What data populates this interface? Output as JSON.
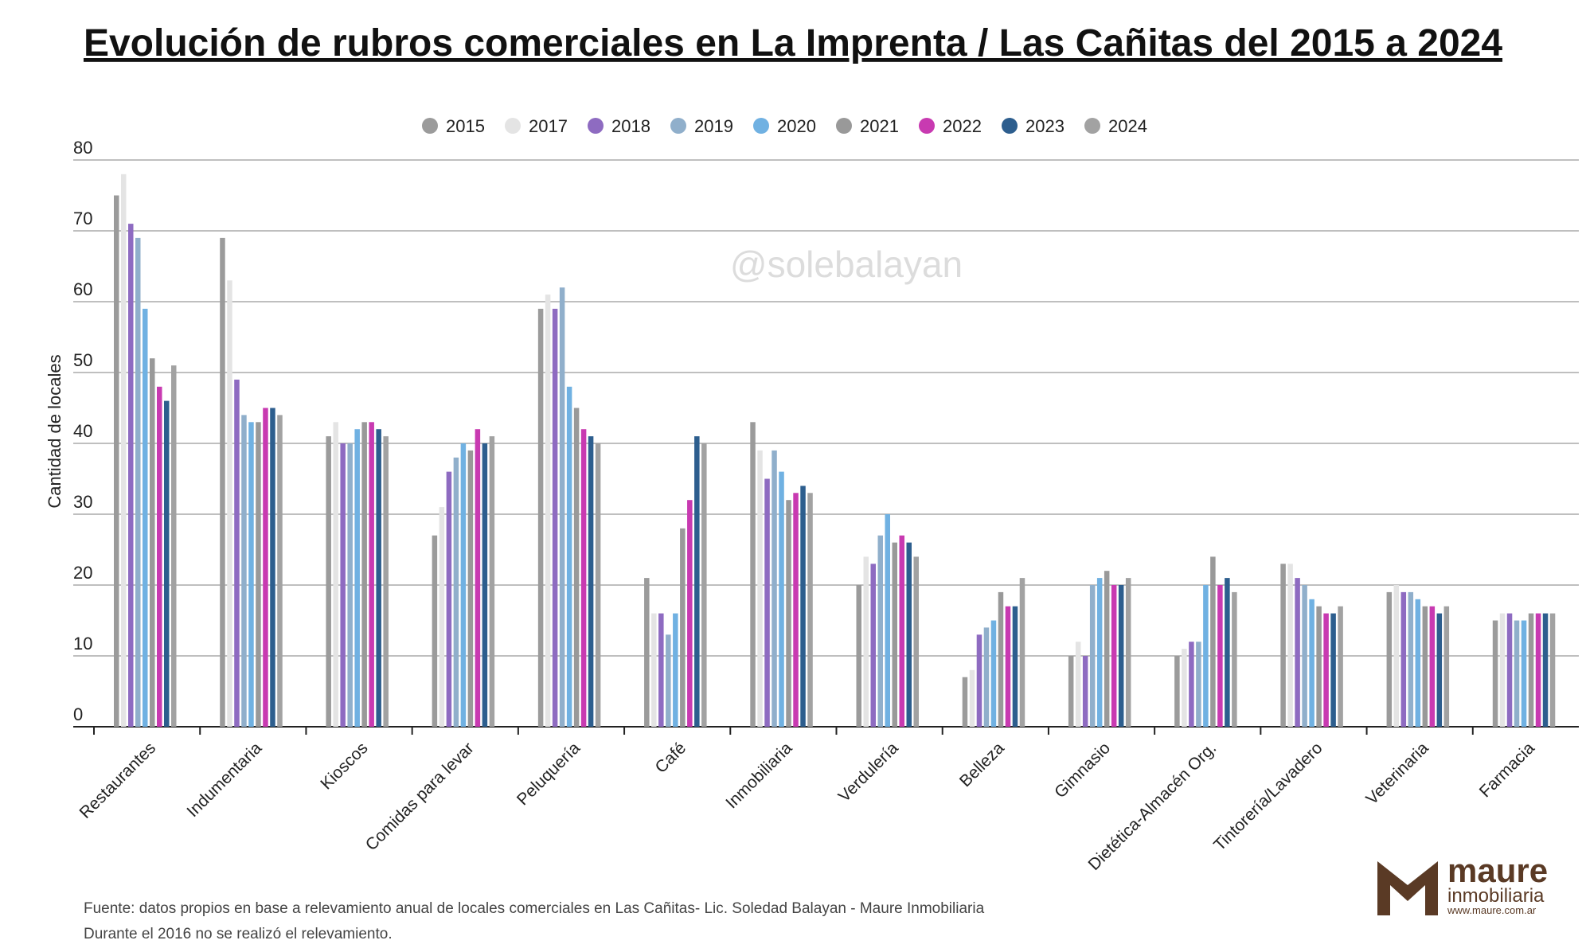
{
  "chart_data": {
    "type": "bar",
    "title": "Evolución de rubros comerciales en La Imprenta / Las Cañitas del 2015 a 2024",
    "y_label": "Cantidad de locales",
    "watermark": "@solebalayan",
    "source": "Fuente: datos propios en base a relevamiento anual de locales comerciales en Las Cañitas- Lic. Soledad Balayan - Maure Inmobiliaria",
    "note": "Durante el 2016 no se realizó el relevamiento.",
    "logo": {
      "name": "maure",
      "sub": "inmobiliaria",
      "url": "www.maure.com.ar"
    },
    "categories": [
      "Restaurantes",
      "Indumentaria",
      "Kioscos",
      "Comidas para levar",
      "Peluquería",
      "Café",
      "Inmobiliaria",
      "Verdulería",
      "Belleza",
      "Gimnasio",
      "Dietética-Almacén Org.",
      "Tintorería/Lavadero",
      "Veterinaria",
      "Farmacia"
    ],
    "series": [
      {
        "name": "2015",
        "color": "#9b9b9b",
        "values": [
          75,
          69,
          41,
          27,
          59,
          21,
          43,
          20,
          7,
          10,
          10,
          23,
          19,
          15
        ]
      },
      {
        "name": "2017",
        "color": "#e4e4e4",
        "values": [
          78,
          63,
          43,
          31,
          61,
          16,
          39,
          24,
          8,
          12,
          11,
          23,
          20,
          16
        ]
      },
      {
        "name": "2018",
        "color": "#8e6bc1",
        "values": [
          71,
          49,
          40,
          36,
          59,
          16,
          35,
          23,
          13,
          10,
          12,
          21,
          19,
          16
        ]
      },
      {
        "name": "2019",
        "color": "#90afcb",
        "values": [
          69,
          44,
          40,
          38,
          62,
          13,
          39,
          27,
          14,
          20,
          12,
          20,
          19,
          15
        ]
      },
      {
        "name": "2020",
        "color": "#70b1e2",
        "values": [
          59,
          43,
          42,
          40,
          48,
          16,
          36,
          30,
          15,
          21,
          20,
          18,
          18,
          15
        ]
      },
      {
        "name": "2021",
        "color": "#999999",
        "values": [
          52,
          43,
          43,
          39,
          45,
          28,
          32,
          26,
          19,
          22,
          24,
          17,
          17,
          16
        ]
      },
      {
        "name": "2022",
        "color": "#c83ab1",
        "values": [
          48,
          45,
          43,
          42,
          42,
          32,
          33,
          27,
          17,
          20,
          20,
          16,
          17,
          16
        ]
      },
      {
        "name": "2023",
        "color": "#2d5e8e",
        "values": [
          46,
          45,
          42,
          40,
          41,
          41,
          34,
          26,
          17,
          20,
          21,
          16,
          16,
          16
        ]
      },
      {
        "name": "2024",
        "color": "#a2a2a2",
        "values": [
          51,
          44,
          41,
          41,
          40,
          40,
          33,
          24,
          21,
          21,
          19,
          17,
          17,
          16
        ]
      }
    ],
    "ylim": [
      0,
      80
    ],
    "yticks": [
      0,
      10,
      20,
      30,
      40,
      50,
      60,
      70,
      80
    ],
    "grid": true
  }
}
